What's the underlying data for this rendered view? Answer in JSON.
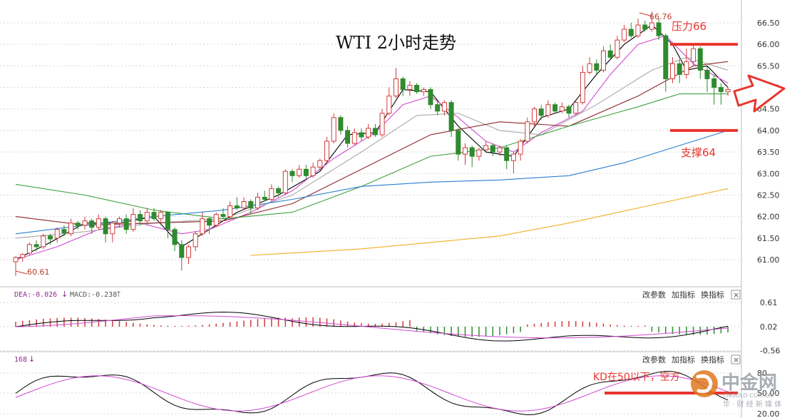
{
  "chart_data": [
    {
      "type": "candlestick",
      "title": "WTI 2小时走势",
      "ylim": [
        60.6,
        66.8
      ],
      "y_ticks": [
        "66.50",
        "66.00",
        "65.50",
        "65.00",
        "64.50",
        "64.00",
        "63.50",
        "63.00",
        "62.50",
        "62.00",
        "61.50",
        "61.00"
      ],
      "y_tick_values": [
        66.5,
        66.0,
        65.5,
        65.0,
        64.5,
        64.0,
        63.5,
        63.0,
        62.5,
        62.0,
        61.5,
        61.0
      ],
      "high_label": "66.76",
      "low_label": "60.61",
      "high_value": 66.76,
      "low_value": 60.61,
      "candles": [
        [
          60.95,
          61.05,
          61.08,
          60.62
        ],
        [
          61.05,
          61.12,
          61.15,
          60.95
        ],
        [
          61.15,
          61.35,
          61.4,
          61.1
        ],
        [
          61.35,
          61.3,
          61.45,
          61.2
        ],
        [
          61.3,
          61.55,
          61.6,
          61.25
        ],
        [
          61.55,
          61.48,
          61.6,
          61.35
        ],
        [
          61.5,
          61.7,
          61.75,
          61.4
        ],
        [
          61.7,
          61.62,
          61.8,
          61.55
        ],
        [
          61.6,
          61.85,
          61.95,
          61.55
        ],
        [
          61.85,
          61.78,
          61.9,
          61.7
        ],
        [
          61.8,
          61.9,
          62.0,
          61.7
        ],
        [
          61.9,
          61.75,
          61.95,
          61.6
        ],
        [
          61.75,
          61.95,
          62.05,
          61.7
        ],
        [
          61.95,
          61.6,
          62.0,
          61.4
        ],
        [
          61.6,
          61.85,
          61.9,
          61.4
        ],
        [
          61.85,
          61.95,
          62.0,
          61.75
        ],
        [
          61.95,
          61.7,
          62.05,
          61.6
        ],
        [
          61.7,
          62.05,
          62.2,
          61.65
        ],
        [
          62.05,
          61.9,
          62.15,
          61.8
        ],
        [
          61.9,
          62.1,
          62.2,
          61.85
        ],
        [
          62.1,
          61.95,
          62.2,
          61.9
        ],
        [
          61.95,
          62.1,
          62.15,
          61.85
        ],
        [
          62.1,
          61.7,
          62.1,
          61.5
        ],
        [
          61.7,
          61.35,
          61.75,
          61.2
        ],
        [
          61.35,
          61.05,
          61.45,
          60.75
        ],
        [
          61.05,
          61.3,
          61.35,
          60.9
        ],
        [
          61.3,
          61.6,
          61.65,
          61.2
        ],
        [
          61.6,
          61.95,
          62.1,
          61.55
        ],
        [
          61.95,
          61.8,
          62.0,
          61.6
        ],
        [
          61.8,
          62.05,
          62.1,
          61.75
        ],
        [
          62.05,
          62.0,
          62.2,
          61.95
        ],
        [
          62.0,
          62.25,
          62.35,
          61.95
        ],
        [
          62.25,
          62.2,
          62.45,
          62.15
        ],
        [
          62.2,
          62.35,
          62.45,
          62.15
        ],
        [
          62.35,
          62.2,
          62.4,
          62.05
        ],
        [
          62.2,
          62.45,
          62.55,
          62.15
        ],
        [
          62.45,
          62.4,
          62.6,
          62.35
        ],
        [
          62.4,
          62.65,
          62.75,
          62.35
        ],
        [
          62.65,
          62.55,
          62.7,
          62.45
        ],
        [
          62.55,
          63.05,
          63.1,
          62.5
        ],
        [
          63.05,
          62.95,
          63.1,
          62.8
        ],
        [
          62.95,
          63.1,
          63.2,
          62.9
        ],
        [
          63.1,
          62.95,
          63.2,
          62.85
        ],
        [
          62.95,
          63.15,
          63.25,
          62.9
        ],
        [
          63.15,
          63.3,
          63.35,
          63.05
        ],
        [
          63.3,
          63.75,
          63.85,
          63.25
        ],
        [
          63.75,
          64.3,
          64.4,
          63.7
        ],
        [
          64.3,
          64.0,
          64.35,
          63.9
        ],
        [
          64.0,
          63.7,
          64.1,
          63.6
        ],
        [
          63.7,
          63.95,
          64.05,
          63.65
        ],
        [
          63.95,
          63.85,
          64.05,
          63.75
        ],
        [
          63.85,
          64.05,
          64.15,
          63.8
        ],
        [
          64.05,
          63.9,
          64.15,
          63.85
        ],
        [
          63.9,
          64.4,
          64.5,
          63.85
        ],
        [
          64.4,
          64.8,
          65.0,
          64.35
        ],
        [
          64.8,
          65.2,
          65.45,
          64.75
        ],
        [
          65.2,
          64.95,
          65.25,
          64.8
        ],
        [
          64.95,
          65.05,
          65.15,
          64.8
        ],
        [
          65.05,
          64.9,
          65.1,
          64.85
        ],
        [
          64.9,
          64.95,
          65.0,
          64.8
        ],
        [
          64.95,
          64.6,
          65.0,
          64.5
        ],
        [
          64.6,
          64.45,
          64.7,
          64.35
        ],
        [
          64.45,
          64.65,
          64.7,
          64.35
        ],
        [
          64.65,
          64.0,
          64.7,
          63.85
        ],
        [
          64.0,
          63.45,
          64.05,
          63.3
        ],
        [
          63.45,
          63.6,
          63.7,
          63.2
        ],
        [
          63.6,
          63.4,
          63.65,
          63.15
        ],
        [
          63.4,
          63.55,
          63.6,
          63.3
        ],
        [
          63.55,
          63.65,
          63.75,
          63.5
        ],
        [
          63.65,
          63.5,
          63.7,
          63.4
        ],
        [
          63.5,
          63.6,
          63.65,
          63.4
        ],
        [
          63.6,
          63.3,
          63.65,
          63.1
        ],
        [
          63.3,
          63.45,
          63.5,
          63.0
        ],
        [
          63.45,
          63.75,
          63.8,
          63.3
        ],
        [
          63.75,
          64.2,
          64.3,
          63.7
        ],
        [
          64.2,
          64.5,
          64.55,
          64.1
        ],
        [
          64.5,
          64.35,
          64.6,
          64.25
        ],
        [
          64.35,
          64.6,
          64.7,
          64.3
        ],
        [
          64.6,
          64.45,
          64.65,
          64.4
        ],
        [
          64.45,
          64.55,
          64.65,
          64.4
        ],
        [
          64.55,
          64.4,
          64.6,
          64.3
        ],
        [
          64.4,
          64.65,
          64.7,
          64.35
        ],
        [
          64.65,
          65.35,
          65.5,
          64.6
        ],
        [
          65.35,
          65.55,
          65.7,
          65.3
        ],
        [
          65.55,
          65.4,
          65.65,
          65.3
        ],
        [
          65.4,
          65.85,
          65.95,
          65.35
        ],
        [
          65.85,
          65.7,
          66.0,
          65.65
        ],
        [
          65.7,
          66.1,
          66.2,
          65.65
        ],
        [
          66.1,
          66.35,
          66.45,
          66.05
        ],
        [
          66.35,
          66.2,
          66.5,
          66.15
        ],
        [
          66.2,
          66.45,
          66.6,
          66.15
        ],
        [
          66.45,
          66.35,
          66.55,
          66.3
        ],
        [
          66.35,
          66.5,
          66.76,
          66.3
        ],
        [
          66.5,
          66.2,
          66.6,
          66.1
        ],
        [
          66.2,
          65.2,
          66.25,
          64.9
        ],
        [
          65.2,
          65.55,
          65.7,
          65.1
        ],
        [
          65.55,
          65.3,
          65.65,
          65.1
        ],
        [
          65.3,
          65.6,
          65.9,
          65.2
        ],
        [
          65.6,
          65.9,
          66.0,
          65.5
        ],
        [
          65.9,
          65.4,
          65.95,
          65.2
        ],
        [
          65.4,
          65.2,
          65.5,
          64.9
        ],
        [
          65.2,
          65.0,
          65.3,
          64.6
        ],
        [
          65.0,
          64.9,
          65.1,
          64.6
        ],
        [
          64.9,
          64.95,
          65.0,
          64.8
        ]
      ],
      "moving_averages": [
        {
          "color": "#000000",
          "values": [
            [
              0,
              61.0
            ],
            [
              5,
              61.4
            ],
            [
              10,
              61.85
            ],
            [
              15,
              61.85
            ],
            [
              20,
              62.0
            ],
            [
              24,
              61.3
            ],
            [
              27,
              61.6
            ],
            [
              32,
              62.1
            ],
            [
              38,
              62.5
            ],
            [
              44,
              63.05
            ],
            [
              48,
              63.9
            ],
            [
              52,
              63.95
            ],
            [
              56,
              64.95
            ],
            [
              60,
              64.9
            ],
            [
              64,
              64.1
            ],
            [
              68,
              63.5
            ],
            [
              72,
              63.4
            ],
            [
              76,
              64.3
            ],
            [
              80,
              64.5
            ],
            [
              84,
              65.3
            ],
            [
              88,
              66.0
            ],
            [
              92,
              66.45
            ],
            [
              95,
              66.0
            ],
            [
              97,
              65.4
            ],
            [
              100,
              65.5
            ],
            [
              103,
              65.0
            ]
          ]
        },
        {
          "color": "#d24ad2",
          "values": [
            [
              0,
              61.0
            ],
            [
              6,
              61.3
            ],
            [
              12,
              61.7
            ],
            [
              18,
              61.85
            ],
            [
              24,
              61.6
            ],
            [
              28,
              61.7
            ],
            [
              34,
              62.1
            ],
            [
              40,
              62.6
            ],
            [
              46,
              63.35
            ],
            [
              52,
              63.95
            ],
            [
              56,
              64.6
            ],
            [
              60,
              64.8
            ],
            [
              64,
              64.3
            ],
            [
              68,
              63.75
            ],
            [
              72,
              63.5
            ],
            [
              76,
              63.95
            ],
            [
              82,
              64.45
            ],
            [
              86,
              65.3
            ],
            [
              90,
              66.0
            ],
            [
              94,
              66.2
            ],
            [
              98,
              65.55
            ],
            [
              103,
              65.1
            ]
          ]
        },
        {
          "color": "#aaaaaa",
          "values": [
            [
              0,
              61.5
            ],
            [
              10,
              61.65
            ],
            [
              20,
              61.85
            ],
            [
              30,
              61.95
            ],
            [
              40,
              62.5
            ],
            [
              50,
              63.5
            ],
            [
              58,
              64.35
            ],
            [
              64,
              64.4
            ],
            [
              70,
              64.0
            ],
            [
              76,
              63.9
            ],
            [
              84,
              64.6
            ],
            [
              92,
              65.4
            ],
            [
              97,
              65.7
            ],
            [
              103,
              65.4
            ]
          ]
        },
        {
          "color": "#8c2a2a",
          "values": [
            [
              0,
              62.0
            ],
            [
              10,
              61.8
            ],
            [
              20,
              61.85
            ],
            [
              30,
              61.9
            ],
            [
              40,
              62.3
            ],
            [
              50,
              63.1
            ],
            [
              60,
              63.9
            ],
            [
              70,
              64.2
            ],
            [
              80,
              64.1
            ],
            [
              90,
              64.8
            ],
            [
              98,
              65.5
            ],
            [
              103,
              65.6
            ]
          ]
        },
        {
          "color": "#3fa03f",
          "values": [
            [
              0,
              62.75
            ],
            [
              10,
              62.5
            ],
            [
              20,
              62.15
            ],
            [
              30,
              61.95
            ],
            [
              40,
              62.1
            ],
            [
              50,
              62.7
            ],
            [
              60,
              63.4
            ],
            [
              70,
              63.6
            ],
            [
              80,
              64.1
            ],
            [
              90,
              64.55
            ],
            [
              96,
              64.85
            ],
            [
              103,
              64.85
            ]
          ]
        },
        {
          "color": "#2a7fd0",
          "values": [
            [
              0,
              61.6
            ],
            [
              10,
              61.8
            ],
            [
              20,
              62.0
            ],
            [
              30,
              62.15
            ],
            [
              40,
              62.4
            ],
            [
              50,
              62.7
            ],
            [
              60,
              62.8
            ],
            [
              70,
              62.85
            ],
            [
              80,
              62.95
            ],
            [
              88,
              63.25
            ],
            [
              96,
              63.65
            ],
            [
              103,
              64.0
            ]
          ]
        },
        {
          "color": "#f0b020",
          "values": [
            [
              34,
              61.1
            ],
            [
              50,
              61.25
            ],
            [
              60,
              61.4
            ],
            [
              70,
              61.55
            ],
            [
              80,
              61.85
            ],
            [
              90,
              62.2
            ],
            [
              103,
              62.65
            ]
          ]
        }
      ],
      "annotations": {
        "resistance_label": "压力66",
        "resistance_value": 66.0,
        "support_label": "支撑64",
        "support_value": 64.0
      }
    },
    {
      "type": "bar",
      "title": "MACD",
      "dea_label": "DEA:-0.026",
      "macd_label": "MACD:-0.238",
      "y_ticks": [
        "0.61",
        "0.02",
        "-0.56"
      ],
      "y_tick_values": [
        0.61,
        0.02,
        -0.56
      ]
    },
    {
      "type": "line",
      "title": "KD",
      "indicator_label": "168",
      "y_ticks": [
        "80",
        "50.00",
        "20.00"
      ],
      "annotation": "KD在50以下，空方"
    }
  ],
  "panel_controls": {
    "macd": {
      "modify": "改参数",
      "add": "加指标",
      "switch": "换指标"
    },
    "kd": {
      "modify": "改参数",
      "add": "加指标",
      "switch": "换指标"
    }
  },
  "watermark": {
    "cn": "中金网",
    "en": "CNGOLD.COM.CN",
    "sub": "华 · 财 经 新 媒 体"
  },
  "colors": {
    "up": "#d23c3c",
    "down": "#2e8b2e",
    "resistance_line": "#e8352e",
    "arrow": "#e8352e",
    "logo": "#e07820"
  }
}
